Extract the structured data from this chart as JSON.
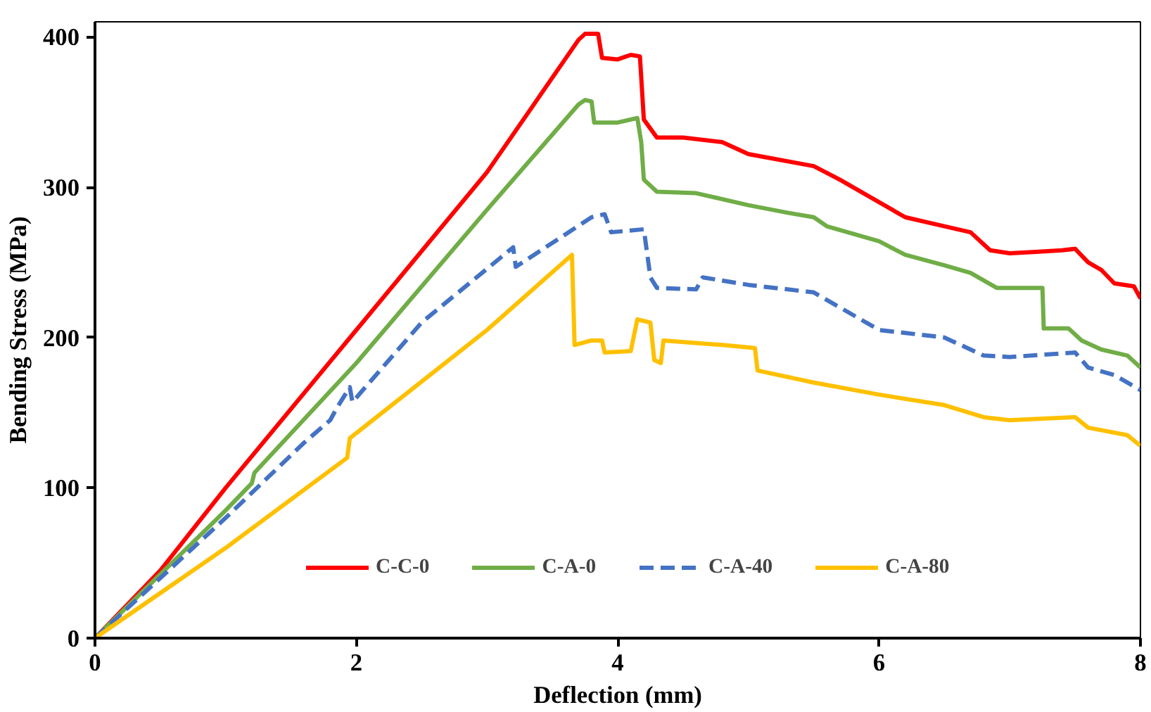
{
  "chart_data": {
    "type": "line",
    "xlabel": "Deflection (mm)",
    "ylabel": "Bending Stress (MPa)",
    "xlim": [
      0,
      8
    ],
    "xticks": [
      0,
      2,
      4,
      6,
      8
    ],
    "ylim": [
      0,
      410
    ],
    "yticks": [
      0,
      100,
      200,
      300,
      400
    ],
    "grid": false,
    "legend": "bottom",
    "marker": "none",
    "series": [
      {
        "name": "C-C-0",
        "color": "#ff0000",
        "line_style": "solid",
        "x": [
          0,
          0.5,
          1,
          2,
          3,
          3.7,
          3.75,
          3.85,
          3.88,
          4.0,
          4.1,
          4.17,
          4.2,
          4.3,
          4.5,
          4.8,
          5,
          5.5,
          5.7,
          6,
          6.2,
          6.5,
          6.7,
          6.85,
          7,
          7.2,
          7.4,
          7.5,
          7.6,
          7.7,
          7.8,
          7.95,
          8
        ],
        "values": [
          0,
          45,
          100,
          205,
          310,
          398,
          402,
          402,
          386,
          385,
          388,
          387,
          345,
          333,
          333,
          330,
          322,
          314,
          305,
          290,
          280,
          274,
          270,
          258,
          256,
          257,
          258,
          259,
          250,
          245,
          236,
          234,
          226
        ]
      },
      {
        "name": "C-A-0",
        "color": "#70ad47",
        "line_style": "solid",
        "x": [
          0,
          1,
          1.2,
          1.22,
          2,
          3,
          3.7,
          3.75,
          3.8,
          3.82,
          4.0,
          4.15,
          4.18,
          4.2,
          4.3,
          4.6,
          5,
          5.3,
          5.5,
          5.6,
          6,
          6.2,
          6.5,
          6.7,
          6.9,
          7.25,
          7.26,
          7.45,
          7.55,
          7.7,
          7.9,
          8
        ],
        "values": [
          0,
          85,
          103,
          110,
          183,
          285,
          355,
          358,
          357,
          343,
          343,
          346,
          330,
          305,
          297,
          296,
          288,
          283,
          280,
          274,
          264,
          255,
          248,
          243,
          233,
          233,
          206,
          206,
          198,
          192,
          188,
          180
        ]
      },
      {
        "name": "C-A-40",
        "color": "#4472c4",
        "line_style": "dashed",
        "x": [
          0,
          1,
          1.6,
          1.8,
          1.85,
          1.95,
          1.97,
          2.5,
          3.2,
          3.22,
          3.8,
          3.9,
          3.95,
          4.2,
          4.25,
          4.3,
          4.6,
          4.65,
          5,
          5.5,
          6,
          6.5,
          6.8,
          7,
          7.5,
          7.6,
          7.8,
          8
        ],
        "values": [
          0,
          80,
          130,
          145,
          153,
          167,
          157,
          210,
          260,
          247,
          280,
          282,
          270,
          272,
          240,
          233,
          232,
          240,
          235,
          230,
          205,
          200,
          188,
          187,
          190,
          180,
          175,
          165
        ]
      },
      {
        "name": "C-A-80",
        "color": "#ffc000",
        "line_style": "solid",
        "x": [
          0,
          1,
          1.93,
          1.95,
          3,
          3.65,
          3.67,
          3.8,
          3.88,
          3.9,
          4.1,
          4.15,
          4.25,
          4.28,
          4.33,
          4.35,
          4.8,
          5.05,
          5.07,
          5.5,
          6,
          6.5,
          6.8,
          7,
          7.5,
          7.6,
          7.9,
          8
        ],
        "values": [
          0,
          60,
          120,
          133,
          205,
          255,
          195,
          198,
          198,
          190,
          191,
          212,
          210,
          185,
          183,
          198,
          195,
          193,
          178,
          170,
          162,
          155,
          147,
          145,
          147,
          140,
          135,
          128
        ]
      }
    ]
  }
}
